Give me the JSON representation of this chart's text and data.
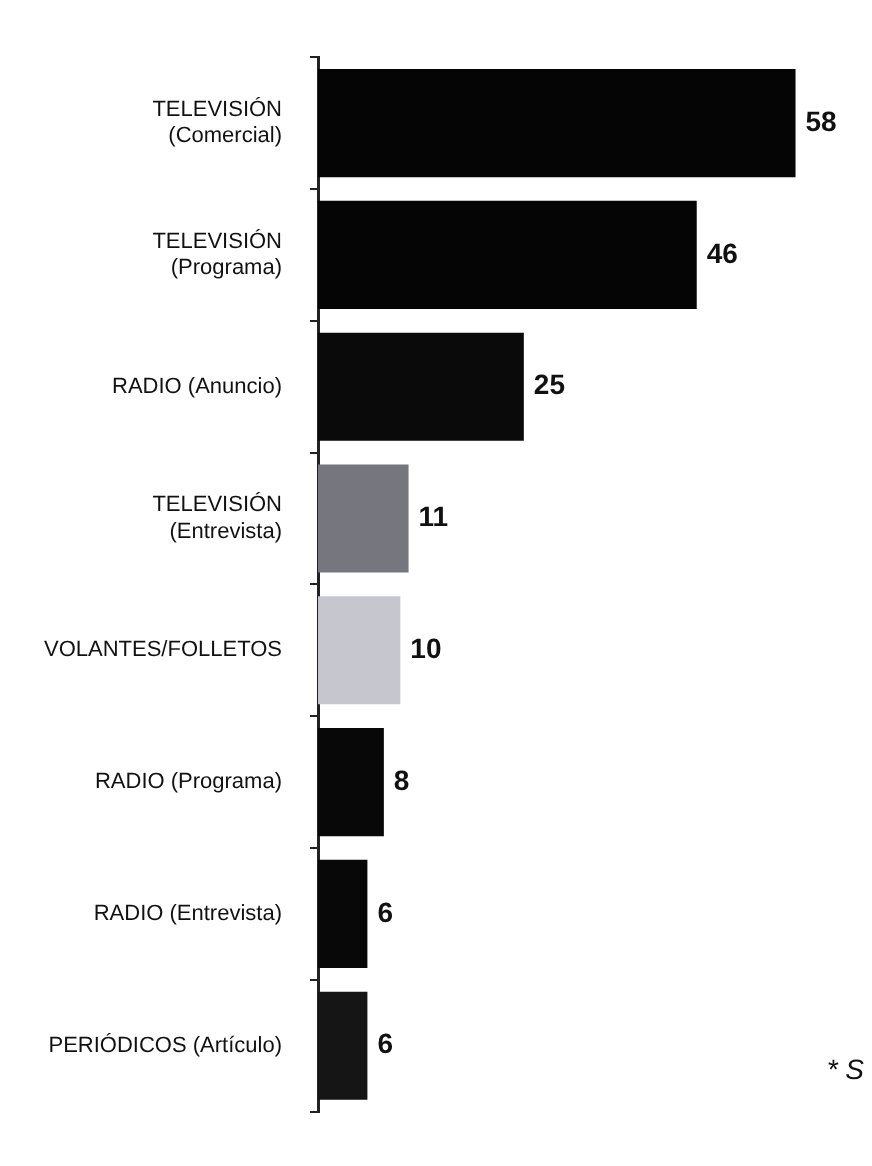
{
  "chart_data": {
    "type": "bar",
    "orientation": "horizontal",
    "categories": [
      "TELEVISIÓN\n(Comercial)",
      "TELEVISIÓN\n(Programa)",
      "RADIO (Anuncio)",
      "TELEVISIÓN\n(Entrevista)",
      "VOLANTES/FOLLETOS",
      "RADIO (Programa)",
      "RADIO (Entrevista)",
      "PERIÓDICOS (Artículo)"
    ],
    "values": [
      58,
      46,
      25,
      11,
      10,
      8,
      6,
      6
    ],
    "colors": [
      "#050505",
      "#050505",
      "#0a0a0a",
      "#76767e",
      "#c6c6ce",
      "#080808",
      "#080808",
      "#151515"
    ],
    "data_labels": true,
    "annotations": [
      "* S"
    ]
  }
}
